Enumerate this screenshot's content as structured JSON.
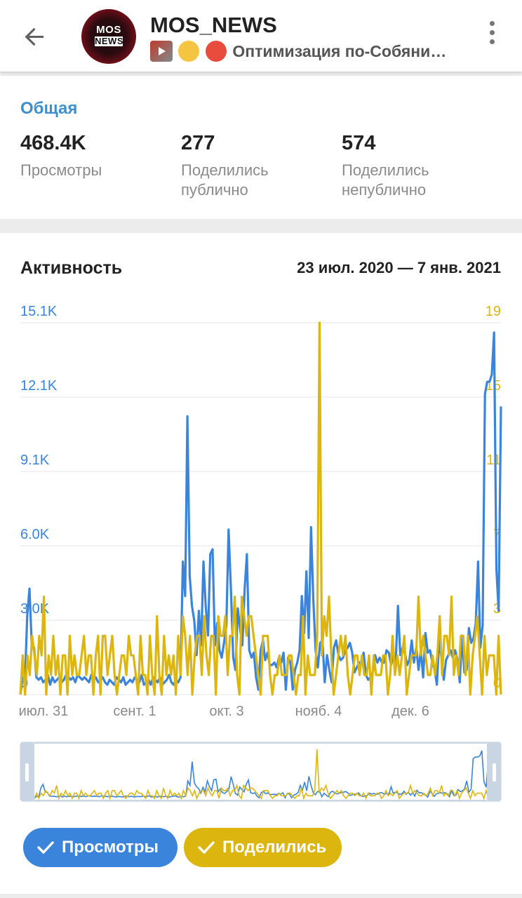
{
  "header": {
    "title": "MOS_NEWS",
    "avatar_text_1": "MOS",
    "avatar_text_2": "NEWS",
    "subtitle": "Оптимизация по-Собяни…",
    "emoji_badge": "&$!#%"
  },
  "general": {
    "title": "Общая",
    "stats": [
      {
        "value": "468.4K",
        "label": "Просмотры"
      },
      {
        "value": "277",
        "label": "Поделились публично"
      },
      {
        "value": "574",
        "label": "Поделились непублично"
      }
    ]
  },
  "activity": {
    "title": "Активность",
    "range": "23 июл. 2020 — 7 янв. 2021"
  },
  "chips": {
    "views": "Просмотры",
    "shares": "Поделились"
  },
  "colors": {
    "views": "#3a84dc",
    "shares": "#dcb60f",
    "section_title": "#3e8fd0"
  },
  "chart_data": {
    "type": "line",
    "x_ticks": [
      "июл. 31",
      "сент. 1",
      "окт. 3",
      "нояб. 4",
      "дек. 6"
    ],
    "y_left_ticks": [
      "0",
      "3.0K",
      "6.0K",
      "9.1K",
      "12.1K",
      "15.1K"
    ],
    "y_right_ticks": [
      "0",
      "3",
      "7",
      "11",
      "15",
      "19"
    ],
    "y_left_range": [
      0,
      15100
    ],
    "y_right_range": [
      0,
      19
    ],
    "series": [
      {
        "name": "Просмотры",
        "axis": "left",
        "color": "#3a84dc",
        "values": [
          0,
          700,
          500,
          3200,
          4300,
          2000,
          1900,
          700,
          600,
          700,
          500,
          600,
          800,
          400,
          700,
          500,
          600,
          700,
          500,
          600,
          800,
          700,
          600,
          700,
          500,
          800,
          700,
          600,
          700,
          600,
          500,
          800,
          600,
          700,
          500,
          600,
          700,
          500,
          400,
          600,
          500,
          400,
          700,
          600,
          500,
          700,
          400,
          500,
          600,
          500,
          700,
          600,
          500,
          800,
          400,
          500,
          600,
          400,
          700,
          600,
          500,
          700,
          400,
          500,
          600,
          800,
          500,
          400,
          600,
          500,
          700,
          5400,
          4000,
          11300,
          4800,
          3600,
          3000,
          1600,
          3400,
          2000,
          5400,
          3600,
          2400,
          5700,
          5900,
          2000,
          2900,
          1800,
          1500,
          2100,
          2800,
          6700,
          4300,
          1500,
          1000,
          3500,
          2700,
          2000,
          4300,
          5700,
          1800,
          1500,
          1700,
          700,
          200,
          1800,
          2200,
          1400,
          1700,
          1200,
          1200,
          1300,
          1100,
          1500,
          1300,
          1700,
          200,
          1500,
          1300,
          200,
          1000,
          1300,
          1800,
          4000,
          2500,
          5000,
          2300,
          6800,
          3900,
          1800,
          1100,
          2100,
          2200,
          500,
          1600,
          1000,
          500,
          1900,
          2200,
          1600,
          1400,
          1500,
          1800,
          1900,
          2100,
          1700,
          900,
          1100,
          1300,
          1300,
          1700,
          800,
          600,
          700,
          900,
          1600,
          1300,
          1500,
          1300,
          1300,
          1800,
          1700,
          1200,
          1600,
          1300,
          3600,
          1600,
          1900,
          1700,
          1200,
          1400,
          2200,
          1300,
          1900,
          1000,
          1800,
          700,
          2500,
          1700,
          1800,
          1300,
          1000,
          400,
          2200,
          1500,
          600,
          1400,
          1600,
          1800,
          1500,
          1800,
          1400,
          500,
          2400,
          900,
          1000,
          2700,
          2100,
          2300,
          2900,
          5400,
          1900,
          2800,
          12200,
          12700,
          12700,
          13000,
          14700,
          5100,
          3400,
          11700
        ]
      },
      {
        "name": "Поделились",
        "axis": "right",
        "color": "#dcb60f",
        "values": [
          0,
          2,
          0,
          2,
          1,
          3,
          2,
          1,
          3,
          2,
          5,
          0,
          2,
          1,
          3,
          1,
          2,
          0,
          2,
          2,
          0,
          3,
          1,
          2,
          1,
          1,
          2,
          3,
          1,
          2,
          2,
          0,
          2,
          3,
          0,
          3,
          3,
          1,
          2,
          3,
          1,
          0,
          1,
          2,
          2,
          1,
          3,
          2,
          2,
          1,
          0,
          3,
          1,
          1,
          0,
          3,
          1,
          0,
          4,
          1,
          0,
          3,
          1,
          2,
          1,
          2,
          0,
          3,
          1,
          4,
          3,
          1,
          3,
          0,
          2,
          3,
          3,
          1,
          4,
          2,
          1,
          3,
          3,
          0,
          4,
          3,
          3,
          4,
          1,
          3,
          3,
          5,
          1,
          0,
          5,
          4,
          3,
          4,
          4,
          3,
          2,
          1,
          0,
          3,
          3,
          3,
          1,
          0,
          1,
          1,
          2,
          1,
          1,
          1,
          2,
          2,
          1,
          0,
          1,
          1,
          4,
          0,
          2,
          1,
          1,
          1,
          3,
          19,
          2,
          4,
          3,
          5,
          2,
          0,
          1,
          2,
          3,
          2,
          3,
          1,
          0,
          1,
          2,
          2,
          1,
          2,
          1,
          1,
          2,
          0,
          2,
          1,
          1,
          1,
          2,
          2,
          0,
          1,
          3,
          1,
          2,
          1,
          2,
          3,
          0,
          1,
          2,
          2,
          2,
          5,
          2,
          3,
          2,
          1,
          1,
          2,
          1,
          2,
          4,
          1,
          3,
          3,
          2,
          5,
          1,
          2,
          1,
          3,
          3,
          1,
          3,
          0,
          2,
          3,
          4,
          2,
          0,
          3,
          1,
          2,
          2,
          2,
          0,
          3,
          0
        ]
      }
    ],
    "grid": true
  }
}
